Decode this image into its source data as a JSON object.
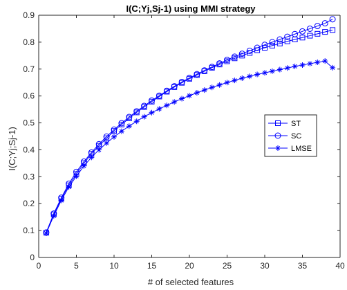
{
  "chart_data": {
    "type": "line",
    "title": "I(C;Yj,Sj-1) using MMI strategy",
    "xlabel": "# of selected features",
    "ylabel": "I(C;Yj;Sj-1)",
    "xlim": [
      0,
      40
    ],
    "ylim": [
      0,
      0.9
    ],
    "xticks": [
      0,
      5,
      10,
      15,
      20,
      25,
      30,
      35,
      40
    ],
    "yticks": [
      0,
      0.1,
      0.2,
      0.3,
      0.4,
      0.5,
      0.6,
      0.7,
      0.8,
      0.9
    ],
    "grid": false,
    "legend_position": "right",
    "line_color": "#0000ff",
    "x": [
      1,
      2,
      3,
      4,
      5,
      6,
      7,
      8,
      9,
      10,
      11,
      12,
      13,
      14,
      15,
      16,
      17,
      18,
      19,
      20,
      21,
      22,
      23,
      24,
      25,
      26,
      27,
      28,
      29,
      30,
      31,
      32,
      33,
      34,
      35,
      36,
      37,
      38,
      39
    ],
    "series": [
      {
        "name": "ST",
        "marker": "square",
        "values": [
          0.092,
          0.16,
          0.218,
          0.268,
          0.31,
          0.35,
          0.385,
          0.415,
          0.443,
          0.47,
          0.494,
          0.517,
          0.539,
          0.559,
          0.579,
          0.598,
          0.616,
          0.633,
          0.649,
          0.664,
          0.678,
          0.692,
          0.705,
          0.717,
          0.729,
          0.74,
          0.75,
          0.76,
          0.77,
          0.779,
          0.787,
          0.795,
          0.803,
          0.81,
          0.817,
          0.824,
          0.831,
          0.838,
          0.845
        ]
      },
      {
        "name": "SC",
        "marker": "circle",
        "values": [
          0.093,
          0.163,
          0.222,
          0.274,
          0.318,
          0.356,
          0.39,
          0.421,
          0.449,
          0.475,
          0.499,
          0.522,
          0.543,
          0.563,
          0.583,
          0.601,
          0.619,
          0.636,
          0.652,
          0.667,
          0.681,
          0.695,
          0.708,
          0.721,
          0.734,
          0.746,
          0.757,
          0.768,
          0.779,
          0.79,
          0.8,
          0.81,
          0.82,
          0.83,
          0.84,
          0.85,
          0.86,
          0.87,
          0.885
        ]
      },
      {
        "name": "LMSE",
        "marker": "star",
        "values": [
          0.09,
          0.155,
          0.212,
          0.262,
          0.302,
          0.34,
          0.372,
          0.4,
          0.425,
          0.448,
          0.469,
          0.488,
          0.506,
          0.523,
          0.538,
          0.552,
          0.565,
          0.578,
          0.59,
          0.601,
          0.612,
          0.622,
          0.632,
          0.641,
          0.65,
          0.658,
          0.666,
          0.673,
          0.68,
          0.686,
          0.692,
          0.698,
          0.704,
          0.71,
          0.715,
          0.72,
          0.725,
          0.73,
          0.705
        ]
      }
    ]
  }
}
